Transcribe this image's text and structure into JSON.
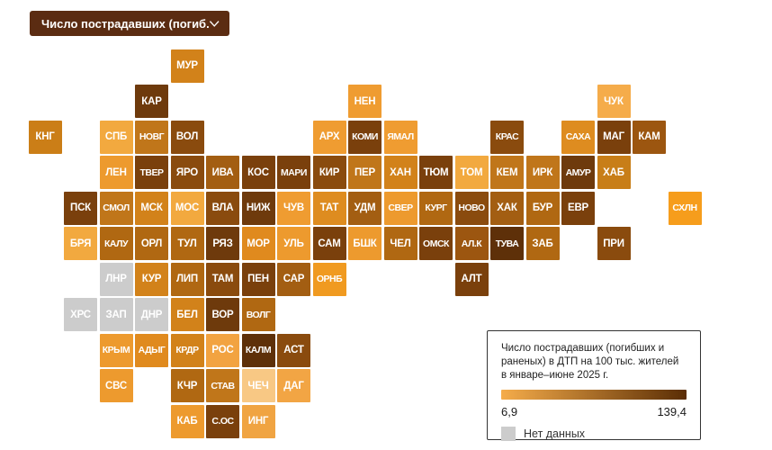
{
  "ui": {
    "dropdown": {
      "label": "Число пострадавших (погиб..."
    },
    "legend": {
      "title_lines": [
        "Число пострадавших (погибших и",
        "раненых) в ДТП на 100 тыс. жителей",
        "в январе–июне 2025 г."
      ],
      "min_label": "6,9",
      "max_label": "139,4",
      "no_data_label": "Нет данных"
    }
  },
  "chart_data": {
    "type": "heatmap",
    "subtype": "tile-grid-cartogram",
    "title": "Число пострадавших (погибших и раненых) в ДТП на 100 тыс. жителей в январе–июне 2025 г.",
    "legend_position": "bottom-right",
    "scale": {
      "min": 6.9,
      "max": 139.4,
      "min_label": "6,9",
      "max_label": "139,4",
      "gradient": [
        "#F5AC4A",
        "#5A2D05"
      ],
      "no_data_color": "#CCCCCC",
      "no_data_label": "Нет данных"
    },
    "no_data_regions": [
      "ЛНР",
      "ХРС",
      "ЗАП",
      "ДНР"
    ],
    "tiles": [
      {
        "code": "МУР",
        "row": 0,
        "col": 4,
        "color": "#D2821A"
      },
      {
        "code": "КАР",
        "row": 1,
        "col": 3,
        "color": "#6E3A0C"
      },
      {
        "code": "НЕН",
        "row": 1,
        "col": 9,
        "color": "#EF9C31"
      },
      {
        "code": "ЧУК",
        "row": 1,
        "col": 16,
        "color": "#F5AC4A"
      },
      {
        "code": "КНГ",
        "row": 2,
        "col": 0,
        "color": "#CB7E17"
      },
      {
        "code": "СПБ",
        "row": 2,
        "col": 2,
        "color": "#F2A93F"
      },
      {
        "code": "НОВГ",
        "row": 2,
        "col": 3,
        "color": "#C0761A"
      },
      {
        "code": "ВОЛ",
        "row": 2,
        "col": 4,
        "color": "#8A4B0E"
      },
      {
        "code": "АРХ",
        "row": 2,
        "col": 8,
        "color": "#EF9C31"
      },
      {
        "code": "КОМИ",
        "row": 2,
        "col": 9,
        "color": "#7A400C"
      },
      {
        "code": "ЯМАЛ",
        "row": 2,
        "col": 10,
        "color": "#EF9C31"
      },
      {
        "code": "КРАС",
        "row": 2,
        "col": 13,
        "color": "#8A4B0E"
      },
      {
        "code": "САХА",
        "row": 2,
        "col": 15,
        "color": "#DE8C20"
      },
      {
        "code": "МАГ",
        "row": 2,
        "col": 16,
        "color": "#7A400C"
      },
      {
        "code": "КАМ",
        "row": 2,
        "col": 17,
        "color": "#9C5610"
      },
      {
        "code": "ЛЕН",
        "row": 3,
        "col": 2,
        "color": "#ED9A2E"
      },
      {
        "code": "ТВЕР",
        "row": 3,
        "col": 3,
        "color": "#7A400C"
      },
      {
        "code": "ЯРО",
        "row": 3,
        "col": 4,
        "color": "#8A4B0E"
      },
      {
        "code": "ИВА",
        "row": 3,
        "col": 5,
        "color": "#A35E12"
      },
      {
        "code": "КОС",
        "row": 3,
        "col": 6,
        "color": "#7A400C"
      },
      {
        "code": "МАРИ",
        "row": 3,
        "col": 7,
        "color": "#7A400C"
      },
      {
        "code": "КИР",
        "row": 3,
        "col": 8,
        "color": "#8A4B0E"
      },
      {
        "code": "ПЕР",
        "row": 3,
        "col": 9,
        "color": "#C0761A"
      },
      {
        "code": "ХАН",
        "row": 3,
        "col": 10,
        "color": "#D2821A"
      },
      {
        "code": "ТЮМ",
        "row": 3,
        "col": 11,
        "color": "#7A400C"
      },
      {
        "code": "ТОМ",
        "row": 3,
        "col": 12,
        "color": "#F2A93F"
      },
      {
        "code": "КЕМ",
        "row": 3,
        "col": 13,
        "color": "#C0761A"
      },
      {
        "code": "ИРК",
        "row": 3,
        "col": 14,
        "color": "#C0761A"
      },
      {
        "code": "АМУР",
        "row": 3,
        "col": 15,
        "color": "#6E3A0C"
      },
      {
        "code": "ХАБ",
        "row": 3,
        "col": 16,
        "color": "#C87E18"
      },
      {
        "code": "ПСК",
        "row": 4,
        "col": 1,
        "color": "#7A400C"
      },
      {
        "code": "СМОЛ",
        "row": 4,
        "col": 2,
        "color": "#C0761A"
      },
      {
        "code": "МСК",
        "row": 4,
        "col": 3,
        "color": "#D2821A"
      },
      {
        "code": "МОС",
        "row": 4,
        "col": 4,
        "color": "#F2A93F"
      },
      {
        "code": "ВЛА",
        "row": 4,
        "col": 5,
        "color": "#8A4B0E"
      },
      {
        "code": "НИЖ",
        "row": 4,
        "col": 6,
        "color": "#6E3A0C"
      },
      {
        "code": "ЧУВ",
        "row": 4,
        "col": 7,
        "color": "#EF9C31"
      },
      {
        "code": "ТАТ",
        "row": 4,
        "col": 8,
        "color": "#DE8C20"
      },
      {
        "code": "УДМ",
        "row": 4,
        "col": 9,
        "color": "#A35E12"
      },
      {
        "code": "СВЕР",
        "row": 4,
        "col": 10,
        "color": "#ED9A2E"
      },
      {
        "code": "КУРГ",
        "row": 4,
        "col": 11,
        "color": "#B06812"
      },
      {
        "code": "НОВО",
        "row": 4,
        "col": 12,
        "color": "#8A4B0E"
      },
      {
        "code": "ХАК",
        "row": 4,
        "col": 13,
        "color": "#A35E12"
      },
      {
        "code": "БУР",
        "row": 4,
        "col": 14,
        "color": "#B06812"
      },
      {
        "code": "ЕВР",
        "row": 4,
        "col": 15,
        "color": "#7A400C"
      },
      {
        "code": "СХЛН",
        "row": 4,
        "col": 18,
        "color": "#F69D1C"
      },
      {
        "code": "БРЯ",
        "row": 5,
        "col": 1,
        "color": "#F2A93F"
      },
      {
        "code": "КАЛУ",
        "row": 5,
        "col": 2,
        "color": "#B06812"
      },
      {
        "code": "ОРЛ",
        "row": 5,
        "col": 3,
        "color": "#B06812"
      },
      {
        "code": "ТУЛ",
        "row": 5,
        "col": 4,
        "color": "#B06812"
      },
      {
        "code": "РЯЗ",
        "row": 5,
        "col": 5,
        "color": "#6E3A0C"
      },
      {
        "code": "МОР",
        "row": 5,
        "col": 6,
        "color": "#E08A1E"
      },
      {
        "code": "УЛЬ",
        "row": 5,
        "col": 7,
        "color": "#ED9A2E"
      },
      {
        "code": "САМ",
        "row": 5,
        "col": 8,
        "color": "#7A400C"
      },
      {
        "code": "БШК",
        "row": 5,
        "col": 9,
        "color": "#ED9A2E"
      },
      {
        "code": "ЧЕЛ",
        "row": 5,
        "col": 10,
        "color": "#B06812"
      },
      {
        "code": "ОМСК",
        "row": 5,
        "col": 11,
        "color": "#7A400C"
      },
      {
        "code": "АЛ.К",
        "row": 5,
        "col": 12,
        "color": "#9C5610"
      },
      {
        "code": "ТУВА",
        "row": 5,
        "col": 13,
        "color": "#5E3009"
      },
      {
        "code": "ЗАБ",
        "row": 5,
        "col": 14,
        "color": "#B06812"
      },
      {
        "code": "ПРИ",
        "row": 5,
        "col": 16,
        "color": "#8A4B0E"
      },
      {
        "code": "ЛНР",
        "row": 6,
        "col": 2,
        "color": "#CCCCCC"
      },
      {
        "code": "КУР",
        "row": 6,
        "col": 3,
        "color": "#D2821A"
      },
      {
        "code": "ЛИП",
        "row": 6,
        "col": 4,
        "color": "#B06812"
      },
      {
        "code": "ТАМ",
        "row": 6,
        "col": 5,
        "color": "#8A4B0E"
      },
      {
        "code": "ПЕН",
        "row": 6,
        "col": 6,
        "color": "#7A400C"
      },
      {
        "code": "САР",
        "row": 6,
        "col": 7,
        "color": "#A35E12"
      },
      {
        "code": "ОРНБ",
        "row": 6,
        "col": 8,
        "color": "#F09A20"
      },
      {
        "code": "АЛТ",
        "row": 6,
        "col": 12,
        "color": "#7A400C"
      },
      {
        "code": "ХРС",
        "row": 7,
        "col": 1,
        "color": "#CCCCCC"
      },
      {
        "code": "ЗАП",
        "row": 7,
        "col": 2,
        "color": "#CCCCCC"
      },
      {
        "code": "ДНР",
        "row": 7,
        "col": 3,
        "color": "#CCCCCC"
      },
      {
        "code": "БЕЛ",
        "row": 7,
        "col": 4,
        "color": "#D2821A"
      },
      {
        "code": "ВОР",
        "row": 7,
        "col": 5,
        "color": "#6E3A0C"
      },
      {
        "code": "ВОЛГ",
        "row": 7,
        "col": 6,
        "color": "#B06812"
      },
      {
        "code": "КРЫМ",
        "row": 8,
        "col": 2,
        "color": "#ED9A2E"
      },
      {
        "code": "АДЫГ",
        "row": 8,
        "col": 3,
        "color": "#E08A1E"
      },
      {
        "code": "КРДР",
        "row": 8,
        "col": 4,
        "color": "#D2821A"
      },
      {
        "code": "РОС",
        "row": 8,
        "col": 5,
        "color": "#F2A341"
      },
      {
        "code": "КАЛМ",
        "row": 8,
        "col": 6,
        "color": "#5E3009"
      },
      {
        "code": "АСТ",
        "row": 8,
        "col": 7,
        "color": "#8A4B0E"
      },
      {
        "code": "СВС",
        "row": 9,
        "col": 2,
        "color": "#ED9A2E"
      },
      {
        "code": "КЧР",
        "row": 9,
        "col": 4,
        "color": "#B06812"
      },
      {
        "code": "СТАВ",
        "row": 9,
        "col": 5,
        "color": "#C0761A"
      },
      {
        "code": "ЧЕЧ",
        "row": 9,
        "col": 6,
        "color": "#F8C884"
      },
      {
        "code": "ДАГ",
        "row": 9,
        "col": 7,
        "color": "#F2A544"
      },
      {
        "code": "КАБ",
        "row": 10,
        "col": 4,
        "color": "#ED9A2E"
      },
      {
        "code": "С.ОС",
        "row": 10,
        "col": 5,
        "color": "#7A400C"
      },
      {
        "code": "ИНГ",
        "row": 10,
        "col": 6,
        "color": "#F0A442"
      }
    ]
  }
}
